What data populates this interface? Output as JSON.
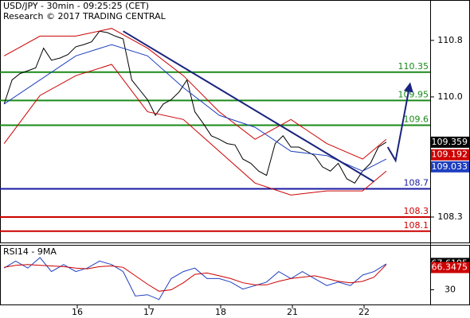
{
  "chart_data": [
    {
      "type": "line",
      "title": "USD/JPY - 30min - 09:25:25 (CET)",
      "subtitle": "Research © 2017 TRADING CENTRAL",
      "xlim": [
        -1.078,
        4.922
      ],
      "ylim": [
        107.94,
        111.36
      ],
      "yticks": [
        110.8,
        {
          "value": 110,
          "label": "110.0"
        },
        108.3
      ],
      "series": [
        {
          "name": "price",
          "color": "#000000",
          "x": [
            -1.02,
            -0.91,
            -0.8,
            -0.69,
            -0.58,
            -0.47,
            -0.36,
            -0.24,
            -0.13,
            -0.02,
            0.09,
            0.2,
            0.31,
            0.42,
            0.53,
            0.64,
            0.76,
            0.87,
            0.98,
            1.09,
            1.2,
            1.31,
            1.42,
            1.53,
            1.64,
            1.76,
            1.87,
            1.98,
            2.09,
            2.2,
            2.31,
            2.42,
            2.53,
            2.64,
            2.76,
            2.87,
            2.98,
            3.09,
            3.2,
            3.31,
            3.42,
            3.53,
            3.64,
            3.76,
            3.87,
            3.98,
            4.09,
            4.2,
            4.31
          ],
          "values": [
            109.9,
            110.24,
            110.33,
            110.37,
            110.41,
            110.69,
            110.52,
            110.55,
            110.6,
            110.71,
            110.74,
            110.78,
            110.93,
            110.91,
            110.86,
            110.82,
            110.24,
            110.1,
            109.96,
            109.74,
            109.9,
            109.96,
            110.07,
            110.24,
            109.79,
            109.62,
            109.45,
            109.4,
            109.34,
            109.32,
            109.12,
            109.06,
            108.95,
            108.89,
            109.34,
            109.45,
            109.29,
            109.29,
            109.23,
            109.17,
            109.01,
            108.95,
            109.06,
            108.84,
            108.78,
            108.95,
            109.06,
            109.29,
            109.36
          ]
        },
        {
          "name": "upper band",
          "color": "#cc0000",
          "x": [
            -1.02,
            -0.52,
            -0.02,
            0.48,
            0.98,
            1.48,
            1.98,
            2.48,
            2.98,
            3.48,
            3.98,
            4.31
          ],
          "values": [
            110.58,
            110.86,
            110.86,
            110.97,
            110.69,
            110.3,
            109.79,
            109.4,
            109.68,
            109.34,
            109.12,
            109.4
          ]
        },
        {
          "name": "lower band",
          "color": "#cc0000",
          "x": [
            -1.02,
            -0.52,
            -0.02,
            0.48,
            0.98,
            1.48,
            1.98,
            2.48,
            2.98,
            3.48,
            3.98,
            4.31
          ],
          "values": [
            109.34,
            110.02,
            110.3,
            110.46,
            109.79,
            109.68,
            109.23,
            108.78,
            108.61,
            108.67,
            108.67,
            108.95
          ]
        },
        {
          "name": "moving average",
          "color": "#1f3fbf",
          "x": [
            -1.02,
            -0.52,
            -0.02,
            0.48,
            0.98,
            1.48,
            1.98,
            2.48,
            2.98,
            3.48,
            3.98,
            4.31
          ],
          "values": [
            109.9,
            110.24,
            110.58,
            110.74,
            110.58,
            110.13,
            109.74,
            109.57,
            109.23,
            109.17,
            108.95,
            109.12
          ]
        },
        {
          "name": "trendline",
          "color": "#1a237e",
          "x": [
            0.64,
            4.14
          ],
          "values": [
            110.93,
            108.8
          ]
        },
        {
          "name": "projection",
          "color": "#1a237e",
          "x": [
            4.33,
            4.44,
            4.64
          ],
          "values": [
            109.29,
            109.1,
            110.18
          ]
        }
      ],
      "levels": [
        {
          "value": 110.35,
          "color": "#1a8a1a"
        },
        {
          "value": 109.95,
          "color": "#1a8a1a"
        },
        {
          "value": 109.6,
          "color": "#1a8a1a"
        },
        {
          "value": 108.7,
          "color": "#1a1aa0"
        },
        {
          "value": 108.3,
          "color": "#cc0000"
        },
        {
          "value": 108.1,
          "color": "#cc0000"
        }
      ],
      "tags": [
        {
          "value": 109.359,
          "color": "#000000"
        },
        {
          "value": 109.192,
          "color": "#cc0000"
        },
        {
          "value": 109.033,
          "color": "#1f3fbf"
        }
      ]
    },
    {
      "type": "line",
      "title": "RSI14 - 9MA",
      "xlim": [
        -1.078,
        4.922
      ],
      "xticks": [
        {
          "value": 0,
          "label": "16"
        },
        {
          "value": 1,
          "label": "17"
        },
        {
          "value": 2,
          "label": "18"
        },
        {
          "value": 3,
          "label": "21"
        },
        {
          "value": 4,
          "label": "22"
        }
      ],
      "ylim": [
        9,
        93
      ],
      "yticks": [
        30
      ],
      "series": [
        {
          "name": "RSI",
          "color": "#1f3fbf",
          "x": [
            -1.02,
            -0.86,
            -0.69,
            -0.52,
            -0.36,
            -0.19,
            -0.02,
            0.14,
            0.31,
            0.48,
            0.64,
            0.81,
            0.98,
            1.14,
            1.31,
            1.48,
            1.64,
            1.81,
            1.98,
            2.14,
            2.31,
            2.48,
            2.64,
            2.81,
            2.98,
            3.14,
            3.31,
            3.48,
            3.64,
            3.81,
            3.98,
            4.14,
            4.31
          ],
          "values": [
            61,
            71,
            61,
            76,
            56,
            66,
            56,
            61,
            71,
            66,
            56,
            21,
            23,
            16,
            46,
            56,
            61,
            46,
            46,
            41,
            31,
            36,
            41,
            56,
            46,
            56,
            46,
            36,
            41,
            36,
            51,
            56,
            67
          ]
        },
        {
          "name": "MA",
          "color": "#cc0000",
          "x": [
            -1.02,
            -0.86,
            -0.69,
            -0.52,
            -0.36,
            -0.19,
            -0.02,
            0.14,
            0.31,
            0.48,
            0.64,
            0.81,
            0.98,
            1.14,
            1.31,
            1.48,
            1.64,
            1.81,
            1.98,
            2.14,
            2.31,
            2.48,
            2.64,
            2.81,
            2.98,
            3.14,
            3.31,
            3.48,
            3.64,
            3.81,
            3.98,
            4.14,
            4.31
          ],
          "values": [
            62,
            65,
            66,
            65,
            64,
            63,
            61,
            60,
            63,
            64,
            62,
            50,
            38,
            28,
            30,
            40,
            52,
            54,
            50,
            46,
            40,
            37,
            37,
            42,
            46,
            48,
            50,
            46,
            42,
            40,
            42,
            48,
            66
          ]
        }
      ],
      "tags": [
        {
          "value": 67.6195,
          "color": "#000000"
        },
        {
          "value": 66.3475,
          "color": "#cc0000"
        }
      ]
    }
  ]
}
